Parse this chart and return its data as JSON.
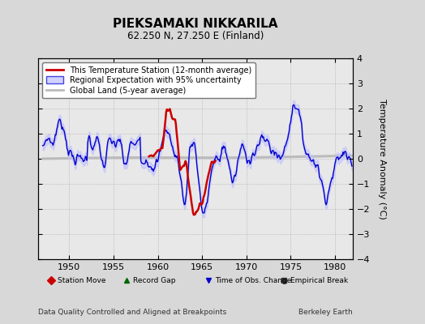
{
  "title": "PIEKSAMAKI NIKKARILA",
  "subtitle": "62.250 N, 27.250 E (Finland)",
  "ylabel": "Temperature Anomaly (°C)",
  "footer_left": "Data Quality Controlled and Aligned at Breakpoints",
  "footer_right": "Berkeley Earth",
  "xlim": [
    1946.5,
    1982
  ],
  "ylim": [
    -4,
    4
  ],
  "yticks": [
    -4,
    -3,
    -2,
    -1,
    0,
    1,
    2,
    3,
    4
  ],
  "xticks": [
    1950,
    1955,
    1960,
    1965,
    1970,
    1975,
    1980
  ],
  "bg_color": "#d8d8d8",
  "plot_bg_color": "#e8e8e8",
  "legend_line_color": "#cc0000",
  "legend_band_color": "#aaaaee",
  "legend_gray_color": "#b8b8b8",
  "blue_line_color": "#0000cc",
  "red_line_color": "#cc0000",
  "gray_line_color": "#bbbbbb"
}
